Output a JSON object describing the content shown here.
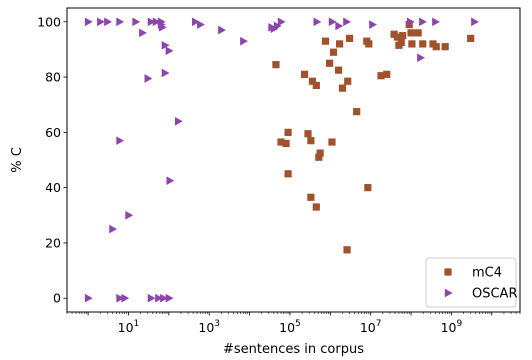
{
  "chart_data": {
    "type": "scatter",
    "xlabel": "#sentences in corpus",
    "ylabel": "% C",
    "xscale": "log",
    "xlim": [
      0.3,
      50000000000
    ],
    "ylim": [
      -5,
      105
    ],
    "x_ticks": [
      {
        "value": 10,
        "base": "10",
        "exp": "1"
      },
      {
        "value": 1000,
        "base": "10",
        "exp": "3"
      },
      {
        "value": 100000,
        "base": "10",
        "exp": "5"
      },
      {
        "value": 10000000,
        "base": "10",
        "exp": "7"
      },
      {
        "value": 1000000000,
        "base": "10",
        "exp": "9"
      }
    ],
    "y_ticks": [
      0,
      20,
      40,
      60,
      80,
      100
    ],
    "y_tick_labels": [
      "0",
      "20",
      "40",
      "60",
      "80",
      "100"
    ],
    "grid": false,
    "legend_position": "bottom-right",
    "series": [
      {
        "name": "mC4",
        "marker": "square",
        "color": "#a0522d",
        "points": [
          [
            60000,
            56.5
          ],
          [
            80000,
            56
          ],
          [
            90000,
            45
          ],
          [
            90000,
            60
          ],
          [
            230000,
            81
          ],
          [
            280000,
            59.5
          ],
          [
            330000,
            57
          ],
          [
            330000,
            36.5
          ],
          [
            360000,
            78.5
          ],
          [
            450000,
            77
          ],
          [
            450000,
            33
          ],
          [
            520000,
            51
          ],
          [
            560000,
            52.5
          ],
          [
            760000,
            93
          ],
          [
            960000,
            85
          ],
          [
            1100000,
            56.5
          ],
          [
            1200000,
            89
          ],
          [
            1600000,
            82.5
          ],
          [
            1700000,
            92
          ],
          [
            2000000,
            76
          ],
          [
            2700000,
            78.5
          ],
          [
            2600000,
            17.5
          ],
          [
            3000000,
            94
          ],
          [
            4500000,
            67.5
          ],
          [
            8000000,
            93
          ],
          [
            8500000,
            40
          ],
          [
            9000000,
            92
          ],
          [
            18000000,
            80.5
          ],
          [
            25000000,
            81
          ],
          [
            38000000,
            95.5
          ],
          [
            46000000,
            94.5
          ],
          [
            50000000,
            91.5
          ],
          [
            57000000,
            92.5
          ],
          [
            62000000,
            95
          ],
          [
            90000000,
            99
          ],
          [
            100000000,
            96
          ],
          [
            105000000,
            92
          ],
          [
            150000000,
            96
          ],
          [
            195000000,
            92
          ],
          [
            350000000,
            92
          ],
          [
            420000000,
            91
          ],
          [
            700000000,
            91
          ],
          [
            3000000000,
            94
          ],
          [
            45000,
            84.5
          ]
        ]
      },
      {
        "name": "OSCAR",
        "marker": "triangle-right",
        "color": "#8e44ad",
        "points": [
          [
            1,
            100
          ],
          [
            2,
            100
          ],
          [
            3,
            100
          ],
          [
            6,
            100
          ],
          [
            15,
            100
          ],
          [
            36,
            100
          ],
          [
            48,
            100
          ],
          [
            64,
            100
          ],
          [
            64,
            99
          ],
          [
            68,
            98
          ],
          [
            450,
            100
          ],
          [
            600,
            99
          ],
          [
            2000,
            97
          ],
          [
            7000,
            93
          ],
          [
            35000,
            98
          ],
          [
            40000,
            97.5
          ],
          [
            48000,
            98.5
          ],
          [
            60000,
            100
          ],
          [
            460000,
            100
          ],
          [
            1100000,
            100
          ],
          [
            1600000,
            98.5
          ],
          [
            2500000,
            100
          ],
          [
            11000000,
            99
          ],
          [
            95000000,
            100
          ],
          [
            190000000,
            100
          ],
          [
            400000000,
            100
          ],
          [
            3700000000,
            100
          ],
          [
            22,
            96
          ],
          [
            30,
            79.5
          ],
          [
            80,
            91.5
          ],
          [
            100,
            89.5
          ],
          [
            80,
            81.5
          ],
          [
            170,
            64
          ],
          [
            6,
            57
          ],
          [
            105,
            42.5
          ],
          [
            10,
            30
          ],
          [
            4,
            25
          ],
          [
            1,
            0
          ],
          [
            6,
            0
          ],
          [
            8,
            0
          ],
          [
            36,
            0
          ],
          [
            55,
            0
          ],
          [
            73,
            0
          ],
          [
            100,
            0
          ],
          [
            170000000,
            87
          ]
        ]
      }
    ]
  }
}
